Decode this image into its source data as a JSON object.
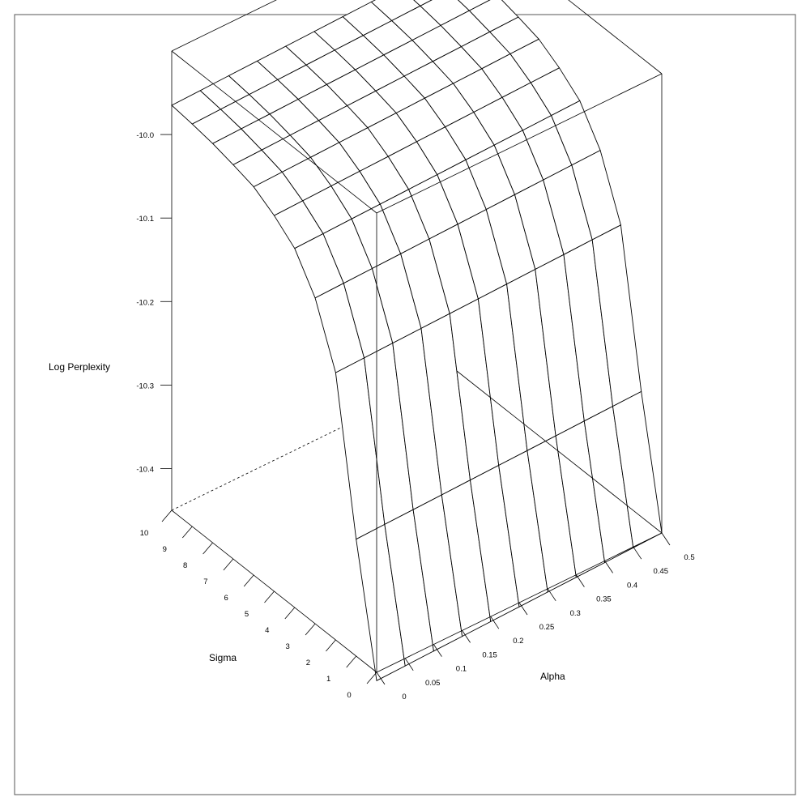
{
  "chart_data": {
    "type": "surface",
    "title": "",
    "xlabel": "Alpha",
    "ylabel": "Sigma",
    "zlabel": "Log Perplexity",
    "x": [
      0,
      0.05,
      0.1,
      0.15,
      0.2,
      0.25,
      0.3,
      0.35,
      0.4,
      0.45,
      0.5
    ],
    "y": [
      0,
      1,
      2,
      3,
      4,
      5,
      6,
      7,
      8,
      9,
      10
    ],
    "x_tick_labels": [
      "0",
      "0.05",
      "0.1",
      "0.15",
      "0.2",
      "0.25",
      "0.3",
      "0.35",
      "0.4",
      "0.45",
      "0.5"
    ],
    "y_tick_labels": [
      "0",
      "1",
      "2",
      "3",
      "4",
      "5",
      "6",
      "7",
      "8",
      "9",
      "10"
    ],
    "z_tick_labels": [
      "-10.0",
      "-10.1",
      "-10.2",
      "-10.3",
      "-10.4"
    ],
    "z_ticks": [
      -10.0,
      -10.1,
      -10.2,
      -10.3,
      -10.4
    ],
    "xlim": [
      0,
      0.5
    ],
    "ylim": [
      0,
      10
    ],
    "zlim": [
      -10.45,
      -9.9
    ],
    "z_by_sigma": [
      -10.45,
      -10.3,
      -10.12,
      -10.05,
      -10.01,
      -9.99,
      -9.975,
      -9.968,
      -9.962,
      -9.958,
      -9.955
    ],
    "z_alpha_slope": 0.04,
    "grid": false,
    "box": true,
    "colors": {
      "line": "#000000",
      "background": "#ffffff"
    }
  }
}
